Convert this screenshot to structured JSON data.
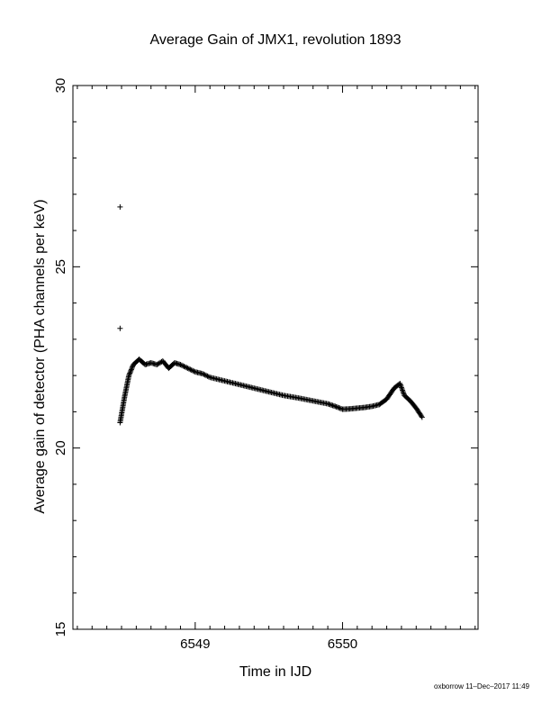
{
  "chart_data": {
    "type": "scatter",
    "title": "Average Gain of JMX1, revolution 1893",
    "xlabel": "Time in IJD",
    "ylabel": "Average gain of detector (PHA channels per keV)",
    "xlim": [
      6548.17,
      6550.92
    ],
    "ylim": [
      15,
      30
    ],
    "x_ticks": [
      6549,
      6550
    ],
    "x_tick_labels": [
      "6549",
      "6550"
    ],
    "y_ticks": [
      15,
      20,
      25,
      30
    ],
    "y_tick_labels": [
      "15",
      "20",
      "25",
      "30"
    ],
    "grid": false,
    "legend": "none",
    "marker": "+",
    "outliers": [
      {
        "x": 6548.49,
        "y": 26.65
      },
      {
        "x": 6548.49,
        "y": 23.3
      }
    ],
    "trend": [
      [
        6548.49,
        20.7
      ],
      [
        6548.52,
        21.4
      ],
      [
        6548.55,
        22.0
      ],
      [
        6548.58,
        22.3
      ],
      [
        6548.62,
        22.45
      ],
      [
        6548.66,
        22.3
      ],
      [
        6548.7,
        22.35
      ],
      [
        6548.74,
        22.3
      ],
      [
        6548.78,
        22.4
      ],
      [
        6548.82,
        22.2
      ],
      [
        6548.86,
        22.35
      ],
      [
        6548.9,
        22.3
      ],
      [
        6548.95,
        22.2
      ],
      [
        6549.0,
        22.1
      ],
      [
        6549.05,
        22.05
      ],
      [
        6549.1,
        21.95
      ],
      [
        6549.2,
        21.85
      ],
      [
        6549.3,
        21.75
      ],
      [
        6549.4,
        21.65
      ],
      [
        6549.5,
        21.55
      ],
      [
        6549.6,
        21.45
      ],
      [
        6549.7,
        21.38
      ],
      [
        6549.8,
        21.3
      ],
      [
        6549.9,
        21.22
      ],
      [
        6549.95,
        21.15
      ],
      [
        6550.0,
        21.07
      ],
      [
        6550.05,
        21.08
      ],
      [
        6550.1,
        21.1
      ],
      [
        6550.15,
        21.12
      ],
      [
        6550.2,
        21.15
      ],
      [
        6550.25,
        21.2
      ],
      [
        6550.3,
        21.35
      ],
      [
        6550.35,
        21.65
      ],
      [
        6550.39,
        21.78
      ],
      [
        6550.42,
        21.45
      ],
      [
        6550.46,
        21.3
      ],
      [
        6550.5,
        21.1
      ],
      [
        6550.54,
        20.85
      ]
    ]
  },
  "footer": "oxborrow 11–Dec–2017 11:49"
}
